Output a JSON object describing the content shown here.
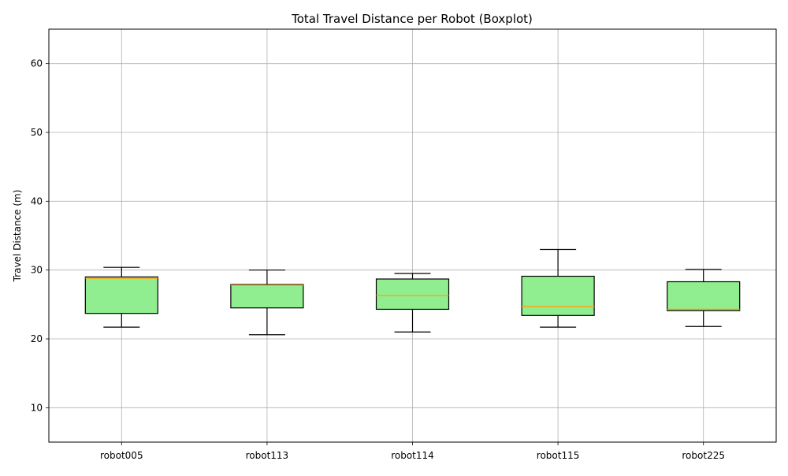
{
  "chart_data": {
    "type": "boxplot",
    "title": "Total Travel Distance per Robot (Boxplot)",
    "xlabel": "",
    "ylabel": "Travel Distance (m)",
    "ylim": [
      5,
      65
    ],
    "yticks": [
      10,
      20,
      30,
      40,
      50,
      60
    ],
    "grid": true,
    "categories": [
      "robot005",
      "robot113",
      "robot114",
      "robot115",
      "robot225"
    ],
    "boxes": [
      {
        "min": 21.7,
        "q1": 23.7,
        "median": 28.8,
        "q3": 29.0,
        "max": 30.4
      },
      {
        "min": 20.6,
        "q1": 24.5,
        "median": 27.8,
        "q3": 27.9,
        "max": 30.0
      },
      {
        "min": 21.0,
        "q1": 24.3,
        "median": 26.3,
        "q3": 28.7,
        "max": 29.5
      },
      {
        "min": 21.7,
        "q1": 23.4,
        "median": 24.7,
        "q3": 29.1,
        "max": 33.0
      },
      {
        "min": 21.8,
        "q1": 24.1,
        "median": 24.3,
        "q3": 28.3,
        "max": 30.1
      }
    ],
    "colors": {
      "box_fill": "#90ee90",
      "box_edge": "#000000",
      "median": "#ff9f0e",
      "whisker": "#000000",
      "grid": "#b0b0b0"
    }
  }
}
